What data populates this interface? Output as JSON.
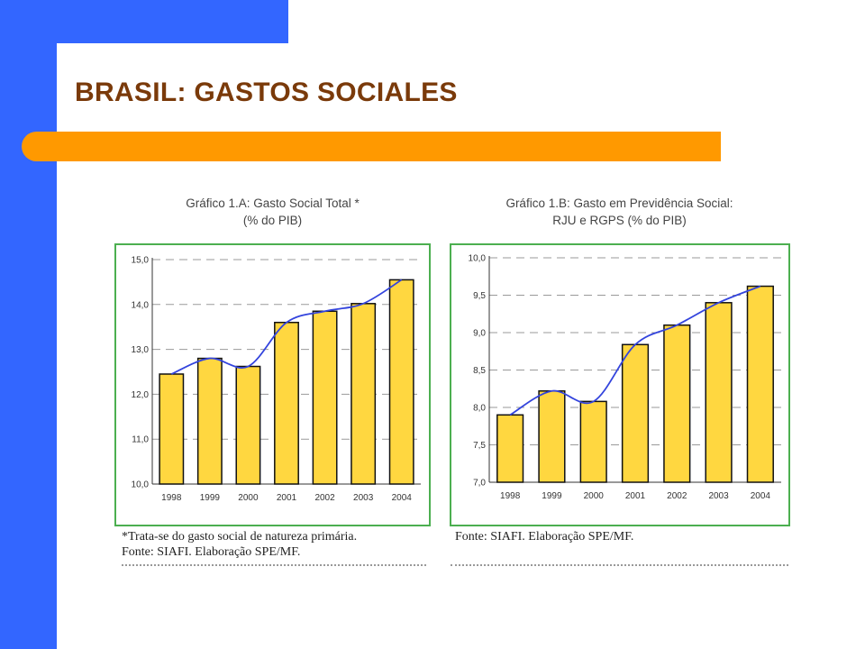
{
  "slide": {
    "title": "BRASIL: GASTOS SOCIALES",
    "colors": {
      "left_bar": "#3366ff",
      "accent_bar": "#ff9900",
      "title": "#7a3a0a",
      "frame": "#4caf50",
      "bar_fill": "#ffd740",
      "line": "#3344dd"
    }
  },
  "chart_data": [
    {
      "type": "bar",
      "title_line1": "Gráfico 1.A: Gasto Social Total *",
      "title_line2": "(% do PIB)",
      "categories": [
        "1998",
        "1999",
        "2000",
        "2001",
        "2002",
        "2003",
        "2004"
      ],
      "values": [
        12.45,
        12.8,
        12.62,
        13.6,
        13.85,
        14.02,
        14.55
      ],
      "ylim": [
        10.0,
        15.0
      ],
      "yticks": [
        "10,0",
        "11,0",
        "12,0",
        "13,0",
        "14,0",
        "15,0"
      ],
      "ytick_values": [
        10,
        11,
        12,
        13,
        14,
        15
      ],
      "trend_line": true,
      "grid": "dashed-horizontal",
      "notes": [
        "*Trata-se do gasto social de natureza primária.",
        "Fonte: SIAFI. Elaboração SPE/MF."
      ]
    },
    {
      "type": "bar",
      "title_line1": "Gráfico 1.B: Gasto em Previdência Social:",
      "title_line2": "RJU e RGPS (% do PIB)",
      "categories": [
        "1998",
        "1999",
        "2000",
        "2001",
        "2002",
        "2003",
        "2004"
      ],
      "values": [
        7.9,
        8.22,
        8.08,
        8.84,
        9.1,
        9.4,
        9.62
      ],
      "ylim": [
        7.0,
        10.0
      ],
      "yticks": [
        "7,0",
        "7,5",
        "8,0",
        "8,5",
        "9,0",
        "9,5",
        "10,0"
      ],
      "ytick_values": [
        7,
        7.5,
        8,
        8.5,
        9,
        9.5,
        10
      ],
      "trend_line": true,
      "grid": "dashed-horizontal",
      "notes": [
        "Fonte: SIAFI. Elaboração SPE/MF."
      ]
    }
  ]
}
